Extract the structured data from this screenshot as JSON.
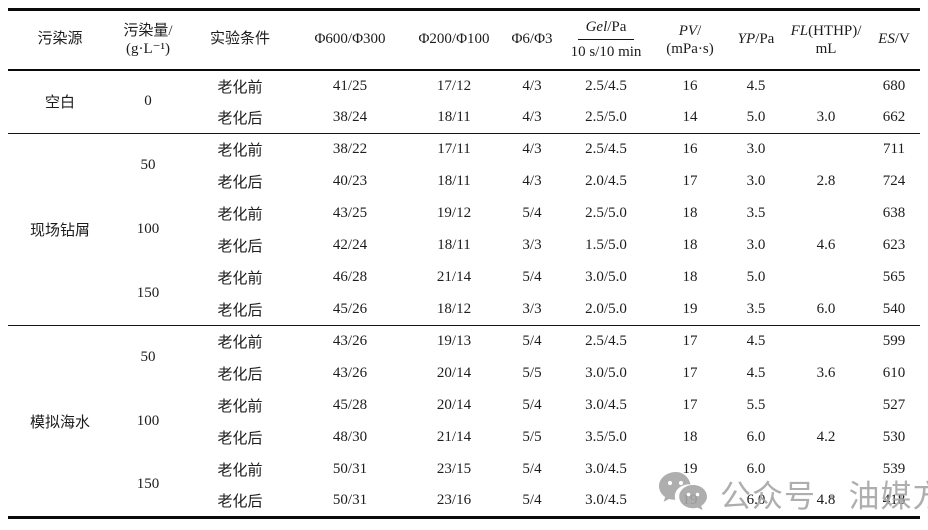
{
  "table": {
    "columns": {
      "source": "污染源",
      "amount_line1": "污染量/",
      "amount_line2": "(g·L⁻¹)",
      "condition": "实验条件",
      "phi600": "Φ600/Φ300",
      "phi200": "Φ200/Φ100",
      "phi6": "Φ6/Φ3",
      "gel_it": "Gel",
      "gel_rest": "/Pa",
      "gel_sub": "10 s/10 min",
      "pv_it": "PV",
      "pv_rest": "/",
      "pv_sub": "(mPa·s)",
      "yp_it": "YP",
      "yp_rest": "/Pa",
      "fl_it": "FL",
      "fl_rest": "(HTHP)/",
      "fl_sub": "mL",
      "es_it": "ES",
      "es_rest": "/V"
    },
    "groups": [
      {
        "source": "空白",
        "amounts": [
          {
            "amount": "0",
            "rows": [
              {
                "cond": "老化前",
                "p600": "41/25",
                "p200": "17/12",
                "p6": "4/3",
                "gel": "2.5/4.5",
                "pv": "16",
                "yp": "4.5",
                "fl": "",
                "es": "680"
              },
              {
                "cond": "老化后",
                "p600": "38/24",
                "p200": "18/11",
                "p6": "4/3",
                "gel": "2.5/5.0",
                "pv": "14",
                "yp": "5.0",
                "fl": "3.0",
                "es": "662"
              }
            ]
          }
        ]
      },
      {
        "source": "现场钻屑",
        "amounts": [
          {
            "amount": "50",
            "rows": [
              {
                "cond": "老化前",
                "p600": "38/22",
                "p200": "17/11",
                "p6": "4/3",
                "gel": "2.5/4.5",
                "pv": "16",
                "yp": "3.0",
                "fl": "",
                "es": "711"
              },
              {
                "cond": "老化后",
                "p600": "40/23",
                "p200": "18/11",
                "p6": "4/3",
                "gel": "2.0/4.5",
                "pv": "17",
                "yp": "3.0",
                "fl": "2.8",
                "es": "724"
              }
            ]
          },
          {
            "amount": "100",
            "rows": [
              {
                "cond": "老化前",
                "p600": "43/25",
                "p200": "19/12",
                "p6": "5/4",
                "gel": "2.5/5.0",
                "pv": "18",
                "yp": "3.5",
                "fl": "",
                "es": "638"
              },
              {
                "cond": "老化后",
                "p600": "42/24",
                "p200": "18/11",
                "p6": "3/3",
                "gel": "1.5/5.0",
                "pv": "18",
                "yp": "3.0",
                "fl": "4.6",
                "es": "623"
              }
            ]
          },
          {
            "amount": "150",
            "rows": [
              {
                "cond": "老化前",
                "p600": "46/28",
                "p200": "21/14",
                "p6": "5/4",
                "gel": "3.0/5.0",
                "pv": "18",
                "yp": "5.0",
                "fl": "",
                "es": "565"
              },
              {
                "cond": "老化后",
                "p600": "45/26",
                "p200": "18/12",
                "p6": "3/3",
                "gel": "2.0/5.0",
                "pv": "19",
                "yp": "3.5",
                "fl": "6.0",
                "es": "540"
              }
            ]
          }
        ]
      },
      {
        "source": "模拟海水",
        "amounts": [
          {
            "amount": "50",
            "rows": [
              {
                "cond": "老化前",
                "p600": "43/26",
                "p200": "19/13",
                "p6": "5/4",
                "gel": "2.5/4.5",
                "pv": "17",
                "yp": "4.5",
                "fl": "",
                "es": "599"
              },
              {
                "cond": "老化后",
                "p600": "43/26",
                "p200": "20/14",
                "p6": "5/5",
                "gel": "3.0/5.0",
                "pv": "17",
                "yp": "4.5",
                "fl": "3.6",
                "es": "610"
              }
            ]
          },
          {
            "amount": "100",
            "rows": [
              {
                "cond": "老化前",
                "p600": "45/28",
                "p200": "20/14",
                "p6": "5/4",
                "gel": "3.0/4.5",
                "pv": "17",
                "yp": "5.5",
                "fl": "",
                "es": "527"
              },
              {
                "cond": "老化后",
                "p600": "48/30",
                "p200": "21/14",
                "p6": "5/5",
                "gel": "3.5/5.0",
                "pv": "18",
                "yp": "6.0",
                "fl": "4.2",
                "es": "530"
              }
            ]
          },
          {
            "amount": "150",
            "rows": [
              {
                "cond": "老化前",
                "p600": "50/31",
                "p200": "23/15",
                "p6": "5/4",
                "gel": "3.0/4.5",
                "pv": "19",
                "yp": "6.0",
                "fl": "",
                "es": "539"
              },
              {
                "cond": "老化后",
                "p600": "50/31",
                "p200": "23/16",
                "p6": "5/4",
                "gel": "3.0/4.5",
                "pv": "19",
                "yp": "6.0",
                "fl": "4.8",
                "es": "418"
              }
            ]
          }
        ]
      }
    ]
  },
  "watermark": {
    "text": "公众号 · 油媒方",
    "icon": "wechat-icon",
    "color": "#a6a6a6"
  }
}
